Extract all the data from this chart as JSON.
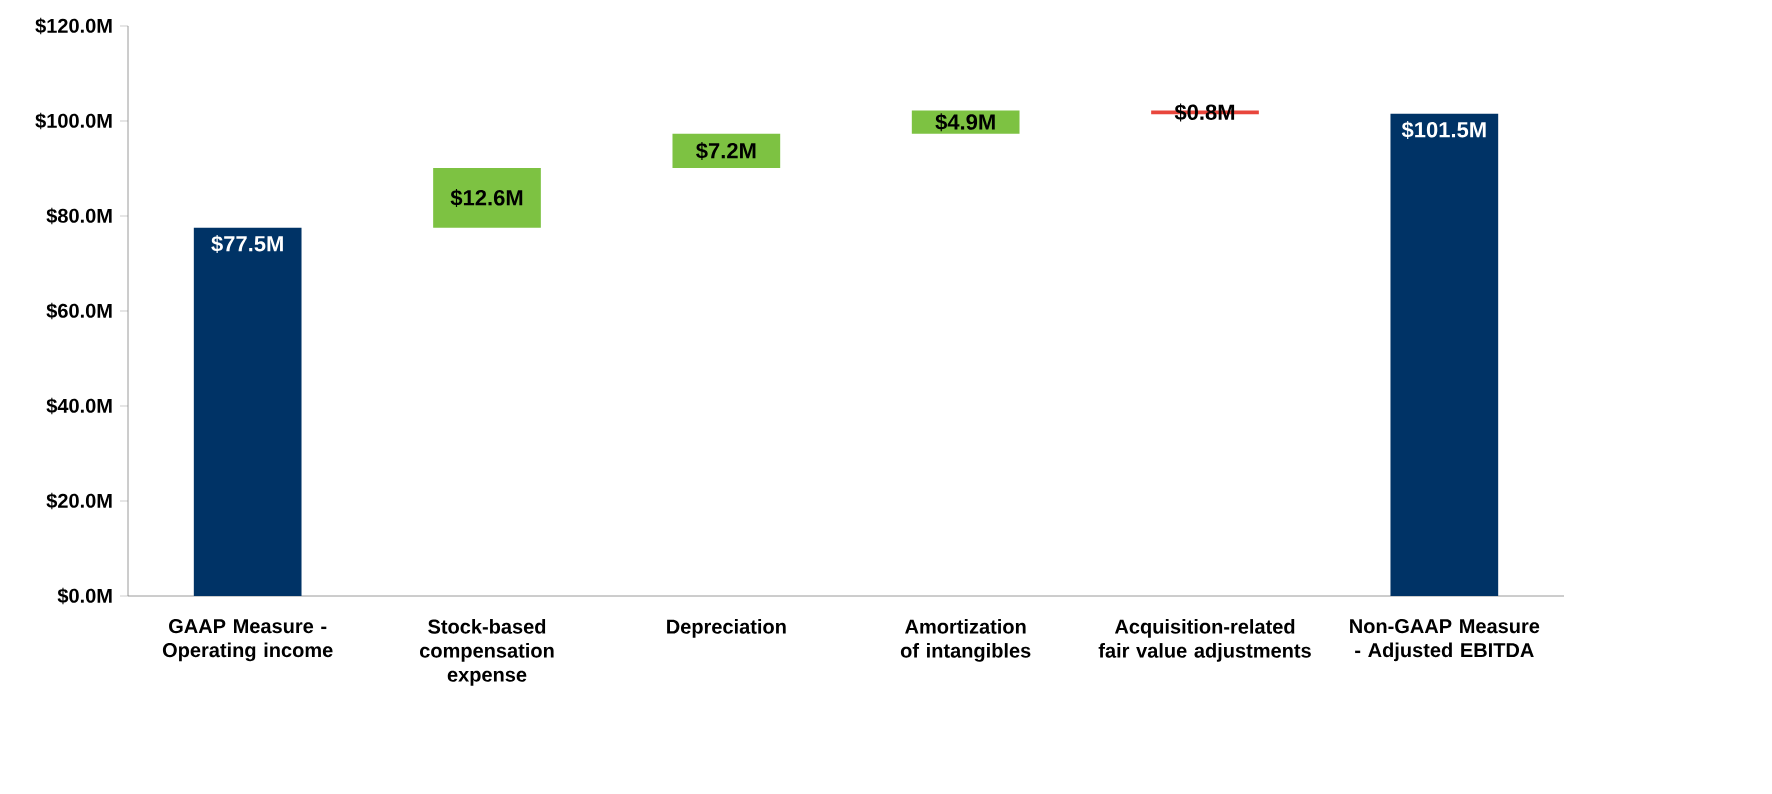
{
  "chart_data": {
    "type": "bar",
    "categories": [
      "GAAP Measure - Operating income",
      "Stock-based compensation expense",
      "Depreciation",
      "Amortization of intangibles",
      "Acquisition-related fair value adjustments",
      "Non-GAAP Measure - Adjusted EBITDA"
    ],
    "values": [
      77.5,
      12.6,
      7.2,
      4.9,
      0.8,
      101.5
    ],
    "base": [
      0,
      77.5,
      90.1,
      97.3,
      101.4,
      0
    ],
    "colors": [
      "#003366",
      "#7dc242",
      "#7dc242",
      "#7dc242",
      "#e8463c",
      "#003366"
    ],
    "value_labels": [
      "$77.5M",
      "$12.6M",
      "$7.2M",
      "$4.9M",
      "$0.8M",
      "$101.5M"
    ],
    "ylim": [
      0,
      120
    ],
    "yticks": [
      {
        "value": 0,
        "label": "$0.0M"
      },
      {
        "value": 20,
        "label": "$20.0M"
      },
      {
        "value": 40,
        "label": "$40.0M"
      },
      {
        "value": 60,
        "label": "$60.0M"
      },
      {
        "value": 80,
        "label": "$80.0M"
      },
      {
        "value": 100,
        "label": "$100.0M"
      },
      {
        "value": 120,
        "label": "$120.0M"
      }
    ],
    "grid": false
  }
}
